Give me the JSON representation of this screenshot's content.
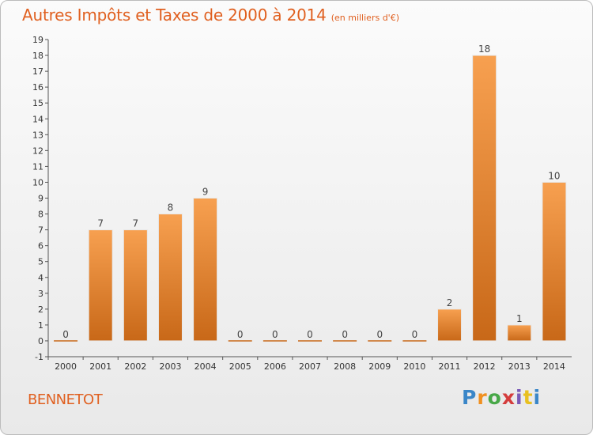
{
  "header": {
    "title": "Autres Impôts et Taxes de 2000 à 2014",
    "unit": "(en milliers d'€)"
  },
  "footer": {
    "commune": "BENNETOT",
    "logo_text": "Proxiti"
  },
  "colors": {
    "accent": "#e06020",
    "bar_light": "#f7a050",
    "bar_dark": "#c86818",
    "axis": "#555555"
  },
  "chart_data": {
    "type": "bar",
    "categories": [
      "2000",
      "2001",
      "2002",
      "2003",
      "2004",
      "2005",
      "2006",
      "2007",
      "2008",
      "2009",
      "2010",
      "2011",
      "2012",
      "2013",
      "2014"
    ],
    "values": [
      0,
      7,
      7,
      8,
      9,
      0,
      0,
      0,
      0,
      0,
      0,
      2,
      18,
      1,
      10
    ],
    "data_labels": [
      "0",
      "7",
      "7",
      "8",
      "9",
      "0",
      "0",
      "0",
      "0",
      "0",
      "0",
      "2",
      "18",
      "1",
      "10"
    ],
    "yticks": [
      -1,
      0,
      1,
      2,
      3,
      4,
      5,
      6,
      7,
      8,
      9,
      10,
      11,
      12,
      13,
      14,
      15,
      16,
      17,
      18,
      19
    ],
    "ylim": [
      -1,
      19
    ],
    "grid": false,
    "legend": "none"
  }
}
